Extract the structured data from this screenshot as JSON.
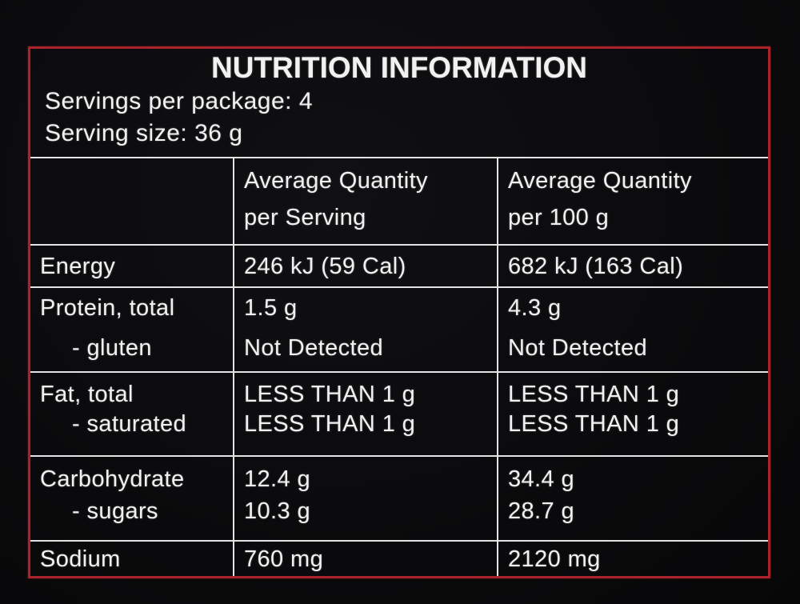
{
  "label": {
    "title": "NUTRITION INFORMATION",
    "servings_line": "Servings per package: 4",
    "serving_size_line": "Serving size: 36 g"
  },
  "table": {
    "header": {
      "name": "",
      "serving": [
        "Average Quantity",
        "per Serving"
      ],
      "per100": [
        "Average Quantity",
        "per 100 g"
      ]
    },
    "rows": [
      {
        "name": [
          "Energy"
        ],
        "serving": [
          "246 kJ (59 Cal)"
        ],
        "per100": [
          "682 kJ (163 Cal)"
        ]
      },
      {
        "name": [
          "Protein, total",
          "- gluten"
        ],
        "serving": [
          "1.5 g",
          "Not Detected"
        ],
        "per100": [
          "4.3 g",
          "Not Detected"
        ]
      },
      {
        "name": [
          "Fat, total",
          "- saturated"
        ],
        "serving": [
          "LESS THAN 1 g",
          "LESS THAN 1 g"
        ],
        "per100": [
          "LESS THAN 1 g",
          "LESS THAN 1 g"
        ]
      },
      {
        "name": [
          "Carbohydrate",
          "- sugars"
        ],
        "serving": [
          "12.4 g",
          "10.3 g"
        ],
        "per100": [
          "34.4 g",
          "28.7 g"
        ]
      },
      {
        "name": [
          "Sodium"
        ],
        "serving": [
          "760 mg"
        ],
        "per100": [
          "2120 mg"
        ]
      }
    ]
  },
  "colors": {
    "background": "#0a0a0c",
    "label_border_red": "#a8232c",
    "grid_line_white": "#e3e3e3",
    "text_white": "#f1f1f1"
  }
}
